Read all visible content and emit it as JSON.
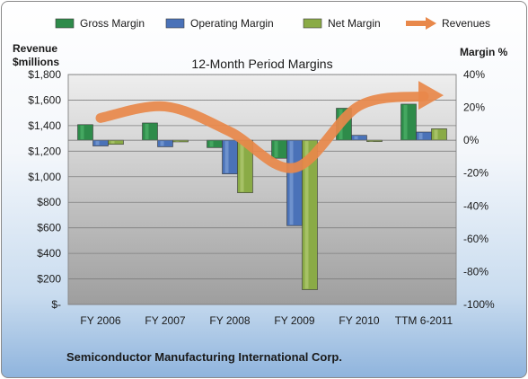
{
  "chart_data": {
    "type": "bar",
    "title": "12-Month Period Margins",
    "categories": [
      "FY 2006",
      "FY 2007",
      "FY 2008",
      "FY 2009",
      "FY 2010",
      "TTM 6-2011"
    ],
    "y_left_label": [
      "Revenue",
      "$millions"
    ],
    "y_right_label": "Margin %",
    "y_left_ticks": [
      "$-",
      "$200",
      "$400",
      "$600",
      "$800",
      "$1,000",
      "$1,200",
      "$1,400",
      "$1,600",
      "$1,800"
    ],
    "y_right_ticks": [
      "-100%",
      "-80%",
      "-60%",
      "-40%",
      "-20%",
      "0%",
      "20%",
      "40%"
    ],
    "y_left_range": [
      0,
      1800
    ],
    "y_right_range": [
      -100,
      40
    ],
    "legend_placement": "top",
    "grid": true,
    "series": [
      {
        "name": "Gross Margin",
        "axis": "right",
        "color": "#2e8b4a",
        "values": [
          9.5,
          10.5,
          -4.5,
          -11,
          19.5,
          22
        ]
      },
      {
        "name": "Operating Margin",
        "axis": "right",
        "color": "#4a72b8",
        "values": [
          -3.5,
          -4,
          -20.5,
          -52,
          3,
          5
        ]
      },
      {
        "name": "Net Margin",
        "axis": "right",
        "color": "#8aab46",
        "values": [
          -2.5,
          -1,
          -32,
          -91,
          -0.5,
          7
        ]
      },
      {
        "name": "Revenues",
        "axis": "left",
        "type": "line",
        "color": "#e8884a",
        "values": [
          1460,
          1550,
          1353,
          1070,
          1555,
          1630
        ]
      }
    ]
  },
  "footer": "Semiconductor Manufacturing International Corp."
}
